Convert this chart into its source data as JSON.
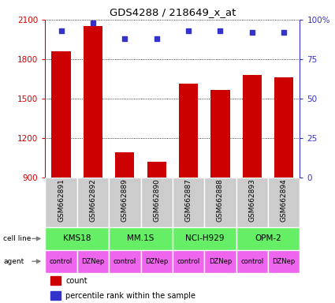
{
  "title": "GDS4288 / 218649_x_at",
  "samples": [
    "GSM662891",
    "GSM662892",
    "GSM662889",
    "GSM662890",
    "GSM662887",
    "GSM662888",
    "GSM662893",
    "GSM662894"
  ],
  "counts": [
    1860,
    2050,
    1090,
    1020,
    1610,
    1565,
    1680,
    1660
  ],
  "percentile_ranks": [
    93,
    98,
    88,
    88,
    93,
    93,
    92,
    92
  ],
  "ylim_left": [
    900,
    2100
  ],
  "ylim_right": [
    0,
    100
  ],
  "yticks_left": [
    900,
    1200,
    1500,
    1800,
    2100
  ],
  "yticks_right": [
    0,
    25,
    50,
    75,
    100
  ],
  "ytick_right_labels": [
    "0",
    "25",
    "50",
    "75",
    "100%"
  ],
  "bar_color": "#CC0000",
  "dot_color": "#3333CC",
  "cell_line_color": "#66EE66",
  "agent_color": "#EE66EE",
  "sample_bg_color": "#CCCCCC",
  "agents": [
    "control",
    "DZNep",
    "control",
    "DZNep",
    "control",
    "DZNep",
    "control",
    "DZNep"
  ],
  "cell_line_groups": [
    [
      0,
      1,
      "KMS18"
    ],
    [
      2,
      3,
      "MM.1S"
    ],
    [
      4,
      5,
      "NCI-H929"
    ],
    [
      6,
      7,
      "OPM-2"
    ]
  ],
  "legend_count_color": "#CC0000",
  "legend_pct_color": "#3333CC",
  "left_axis_color": "#CC0000",
  "right_axis_color": "#3333CC",
  "bar_width": 0.6
}
